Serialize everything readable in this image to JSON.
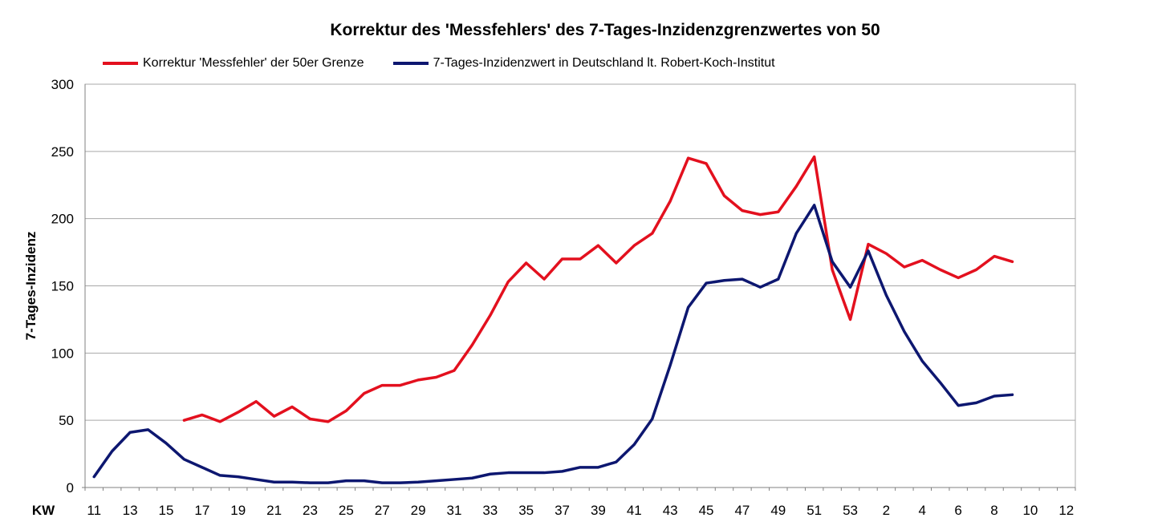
{
  "chart_data": {
    "type": "line",
    "title": "Korrektur des 'Messfehlers' des 7-Tages-Inzidenzgrenzwertes von 50",
    "xlabel": "KW",
    "ylabel": "7-Tages-Inzidenz",
    "ylim": [
      0,
      300
    ],
    "yticks": [
      0,
      50,
      100,
      150,
      200,
      250,
      300
    ],
    "grid": true,
    "legend": "top",
    "categories": [
      "11",
      "12",
      "13",
      "14",
      "15",
      "16",
      "17",
      "18",
      "19",
      "20",
      "21",
      "22",
      "23",
      "24",
      "25",
      "26",
      "27",
      "28",
      "29",
      "30",
      "31",
      "32",
      "33",
      "34",
      "35",
      "36",
      "37",
      "38",
      "39",
      "40",
      "41",
      "42",
      "43",
      "44",
      "45",
      "46",
      "47",
      "48",
      "49",
      "50",
      "51",
      "52",
      "53",
      "1",
      "2",
      "3",
      "4",
      "5",
      "6",
      "7",
      "8",
      "9",
      "10",
      "11",
      "12"
    ],
    "xtick_labels": [
      "11",
      "13",
      "15",
      "17",
      "19",
      "21",
      "23",
      "25",
      "27",
      "29",
      "31",
      "33",
      "35",
      "37",
      "39",
      "41",
      "43",
      "45",
      "47",
      "49",
      "51",
      "53",
      "2",
      "4",
      "6",
      "8",
      "10",
      "12"
    ],
    "series": [
      {
        "name": "Korrektur 'Messfehler' der 50er Grenze",
        "color": "#e3101e",
        "values": [
          null,
          null,
          null,
          null,
          null,
          50,
          54,
          49,
          56,
          64,
          53,
          60,
          51,
          49,
          57,
          70,
          76,
          76,
          80,
          82,
          87,
          106,
          128,
          153,
          167,
          155,
          170,
          170,
          180,
          167,
          180,
          189,
          213,
          245,
          241,
          217,
          206,
          203,
          205,
          224,
          246,
          162,
          125,
          181,
          174,
          164,
          169,
          162,
          156,
          162,
          172,
          168,
          null,
          null,
          null
        ]
      },
      {
        "name": "7-Tages-Inzidenzwert in Deutschland lt. Robert-Koch-Institut",
        "color": "#0d1770",
        "values": [
          8,
          27,
          41,
          43,
          33,
          21,
          15,
          9,
          8,
          6,
          4,
          4,
          3.5,
          3.5,
          5,
          5,
          3.5,
          3.5,
          4,
          5,
          6,
          7,
          10,
          11,
          11,
          11,
          12,
          15,
          15,
          19,
          32,
          51,
          91,
          134,
          152,
          154,
          155,
          149,
          155,
          189,
          210,
          168,
          149,
          176,
          143,
          116,
          94,
          78,
          61,
          63,
          68,
          69,
          null,
          null,
          null
        ]
      }
    ]
  }
}
